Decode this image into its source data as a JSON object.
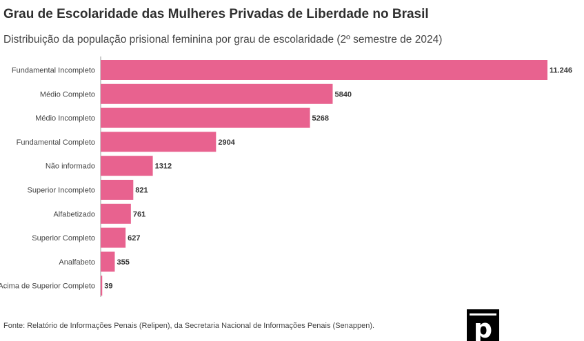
{
  "header": {
    "title": "Grau de Escolaridade das Mulheres Privadas de Liberdade no Brasil",
    "subtitle": "Distribuição da população prisional feminina por grau de escolaridade (2º semestre de 2024)"
  },
  "footer": {
    "source": "Fonte: Relatório de Informações Penais (Relipen), da Secretaria Nacional de Informações Penais (Senappen).",
    "logo_letter": "p",
    "logo_icon": "publisher-logo-icon"
  },
  "colors": {
    "bar": "#e8628f",
    "axis": "#999999"
  },
  "chart_data": {
    "type": "bar",
    "orientation": "horizontal",
    "title": "Grau de Escolaridade das Mulheres Privadas de Liberdade no Brasil",
    "subtitle": "Distribuição da população prisional feminina por grau de escolaridade (2º semestre de 2024)",
    "xlabel": "",
    "ylabel": "",
    "grid": false,
    "xlim": [
      0,
      11246
    ],
    "categories": [
      "Fundamental Incompleto",
      "Médio Completo",
      "Médio Incompleto",
      "Fundamental Completo",
      "Não informado",
      "Superior Incompleto",
      "Alfabetizado",
      "Superior Completo",
      "Analfabeto",
      "Acima de Superior Completo"
    ],
    "values": [
      11246,
      5840,
      5268,
      2904,
      1312,
      821,
      761,
      627,
      355,
      39
    ],
    "value_labels": [
      "11.246",
      "5840",
      "5268",
      "2904",
      "1312",
      "821",
      "761",
      "627",
      "355",
      "39"
    ]
  }
}
